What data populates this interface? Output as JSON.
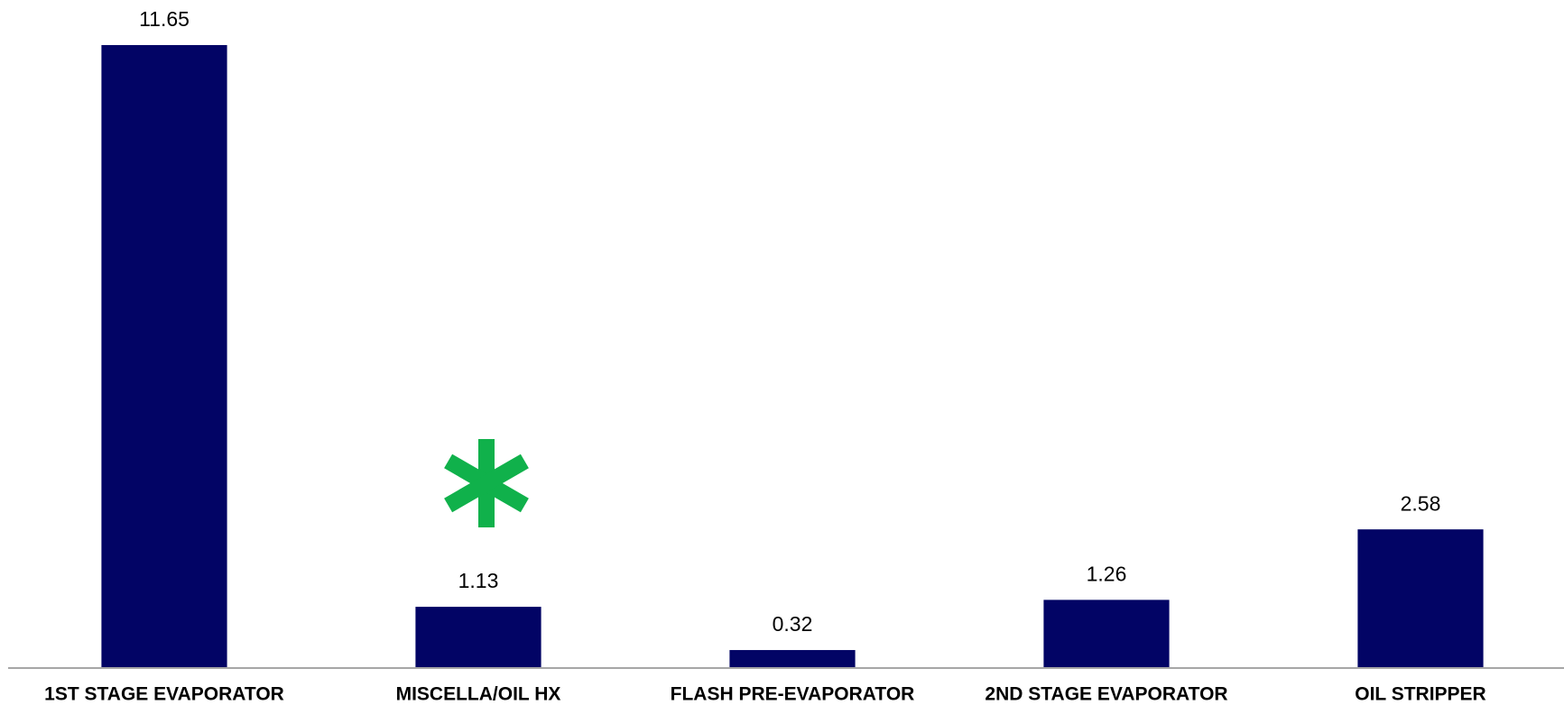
{
  "chart_data": {
    "type": "bar",
    "categories": [
      "1ST STAGE EVAPORATOR",
      "MISCELLA/OIL HX",
      "FLASH PRE-EVAPORATOR",
      "2ND STAGE EVAPORATOR",
      "OIL STRIPPER"
    ],
    "values": [
      11.65,
      1.13,
      0.32,
      1.26,
      2.58
    ],
    "color": "#020465"
  }
}
